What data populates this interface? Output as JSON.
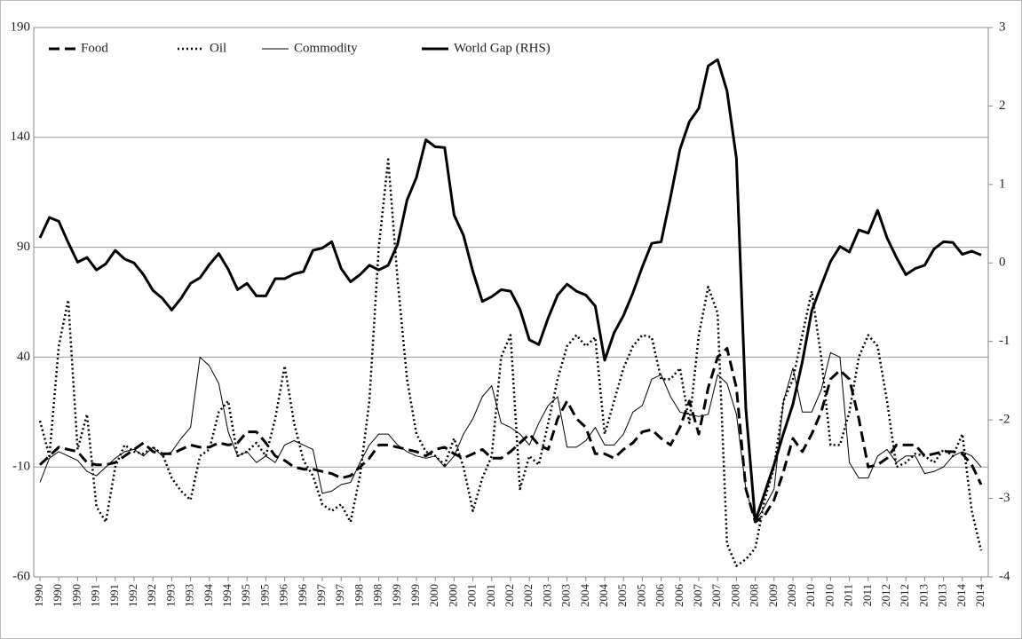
{
  "chart_data": {
    "type": "line",
    "categories": [
      "1990",
      null,
      "1990",
      null,
      "1990",
      null,
      "1991",
      null,
      "1991",
      null,
      "1992",
      null,
      "1992",
      null,
      "1993",
      null,
      "1993",
      null,
      "1994",
      null,
      "1994",
      null,
      "1995",
      null,
      "1995",
      null,
      "1996",
      null,
      "1996",
      null,
      "1997",
      null,
      "1997",
      null,
      "1998",
      null,
      "1998",
      null,
      "1999",
      null,
      "1999",
      null,
      "2000",
      null,
      "2000",
      null,
      "2001",
      null,
      "2001",
      null,
      "2002",
      null,
      "2002",
      null,
      "2003",
      null,
      "2003",
      null,
      "2004",
      null,
      "2004",
      null,
      "2005",
      null,
      "2005",
      null,
      "2006",
      null,
      "2006",
      null,
      "2007",
      null,
      "2007",
      null,
      "2008",
      null,
      "2008",
      null,
      "2009",
      null,
      "2009",
      null,
      "2010",
      null,
      "2010",
      null,
      "2011",
      null,
      "2011",
      null,
      "2012",
      null,
      "2012",
      null,
      "2013",
      null,
      "2013",
      null,
      "2014",
      null,
      "2014"
    ],
    "series": [
      {
        "name": "Food",
        "color": "#000000",
        "dash": "dashed",
        "width": 3,
        "values": [
          -9,
          -5,
          -1,
          -2,
          -3,
          -8,
          -9,
          -9,
          -8,
          -5,
          -2,
          1,
          -3,
          -4,
          -4,
          -2,
          0,
          -1,
          -1,
          1,
          0,
          1,
          6,
          6,
          1,
          -5,
          -7,
          -10,
          -11,
          -11,
          -12,
          -13,
          -15,
          -14,
          -10,
          -6,
          0,
          0,
          -1,
          -2,
          -3,
          -5,
          -2,
          -1,
          -4,
          -6,
          -4,
          -2,
          -6,
          -6,
          -3,
          1,
          5,
          0,
          -2,
          12,
          20,
          12,
          8,
          -4,
          -4,
          -6,
          -2,
          1,
          6,
          7,
          3,
          0,
          8,
          20,
          5,
          26,
          40,
          44,
          26,
          -20,
          -35,
          -32,
          -25,
          -12,
          3,
          -3,
          5,
          15,
          30,
          34,
          30,
          12,
          -10,
          -9,
          -6,
          0,
          0,
          0,
          -5,
          -4,
          -3,
          -3,
          -4,
          -9,
          -18
        ]
      },
      {
        "name": "Oil",
        "color": "#000000",
        "dash": "dotted",
        "width": 2.5,
        "values": [
          11,
          -5,
          45,
          66,
          -2,
          14,
          -28,
          -35,
          -10,
          0,
          -3,
          -4,
          -1,
          -4,
          -15,
          -21,
          -25,
          -5,
          -2,
          15,
          20,
          -5,
          -3,
          1,
          -5,
          12,
          36,
          10,
          -7,
          -14,
          -27,
          -30,
          -27,
          -35,
          -14,
          20,
          90,
          130,
          75,
          30,
          5,
          -3,
          -5,
          -9,
          3,
          -10,
          -30,
          -15,
          -5,
          40,
          50,
          -20,
          -5,
          -9,
          10,
          30,
          45,
          50,
          45,
          49,
          5,
          20,
          35,
          45,
          50,
          49,
          30,
          30,
          35,
          10,
          50,
          72,
          60,
          -45,
          -55,
          -52,
          -47,
          -25,
          -10,
          20,
          30,
          50,
          70,
          40,
          0,
          0,
          15,
          40,
          50,
          45,
          20,
          -10,
          -8,
          -4,
          -5,
          -8,
          -2,
          -5,
          5,
          -30,
          -48
        ]
      },
      {
        "name": "Commodity",
        "color": "#000000",
        "dash": "solid",
        "width": 1,
        "values": [
          -17,
          -6,
          -3,
          -5,
          -7,
          -12,
          -14,
          -10,
          -6,
          -3,
          -2,
          -5,
          -1,
          -5,
          -3,
          3,
          8,
          40,
          36,
          28,
          6,
          -5,
          -3,
          -8,
          -5,
          -8,
          0,
          2,
          0,
          -2,
          -22,
          -21,
          -18,
          -17,
          -8,
          0,
          5,
          5,
          0,
          -3,
          -5,
          -6,
          -5,
          -10,
          -5,
          5,
          12,
          22,
          27,
          10,
          8,
          5,
          0,
          10,
          18,
          22,
          -1,
          -1,
          2,
          8,
          0,
          0,
          5,
          15,
          18,
          30,
          32,
          22,
          15,
          14,
          13,
          14,
          32,
          28,
          14,
          -20,
          -35,
          -28,
          -20,
          20,
          35,
          15,
          15,
          25,
          42,
          40,
          -8,
          -15,
          -15,
          -5,
          -2,
          -8,
          -5,
          -5,
          -13,
          -12,
          -10,
          -5,
          -3,
          -5,
          -10
        ]
      },
      {
        "name": "World Gap (RHS)",
        "color": "#000000",
        "dash": "solid",
        "width": 3,
        "axis": "y2",
        "values": [
          0.32,
          0.58,
          0.53,
          0.26,
          0.01,
          0.07,
          -0.09,
          -0.01,
          0.16,
          0.05,
          0,
          -0.15,
          -0.35,
          -0.45,
          -0.6,
          -0.45,
          -0.26,
          -0.19,
          -0.02,
          0.12,
          -0.08,
          -0.34,
          -0.26,
          -0.42,
          -0.42,
          -0.2,
          -0.2,
          -0.14,
          -0.11,
          0.16,
          0.19,
          0.27,
          -0.07,
          -0.24,
          -0.15,
          -0.03,
          -0.09,
          -0.03,
          0.24,
          0.8,
          1.09,
          1.57,
          1.48,
          1.47,
          0.61,
          0.35,
          -0.11,
          -0.49,
          -0.43,
          -0.34,
          -0.36,
          -0.59,
          -0.98,
          -1.04,
          -0.7,
          -0.41,
          -0.27,
          -0.36,
          -0.41,
          -0.55,
          -1.24,
          -0.89,
          -0.67,
          -0.38,
          -0.05,
          0.25,
          0.27,
          0.84,
          1.45,
          1.8,
          1.97,
          2.51,
          2.59,
          2.19,
          1.33,
          -1.86,
          -3.29,
          -2.93,
          -2.57,
          -2.17,
          -1.8,
          -1.26,
          -0.61,
          -0.29,
          0.02,
          0.21,
          0.14,
          0.42,
          0.38,
          0.67,
          0.32,
          0.07,
          -0.15,
          -0.07,
          -0.03,
          0.18,
          0.27,
          0.26,
          0.11,
          0.15,
          0.1
        ]
      }
    ],
    "ylim": [
      -60,
      190
    ],
    "yticks": [
      -60,
      -10,
      40,
      90,
      140,
      190
    ],
    "y2lim": [
      -4,
      3
    ],
    "y2ticks": [
      -4,
      -3,
      -2,
      -1,
      0,
      1,
      2,
      3
    ],
    "grid": true,
    "legend": "top-left"
  }
}
